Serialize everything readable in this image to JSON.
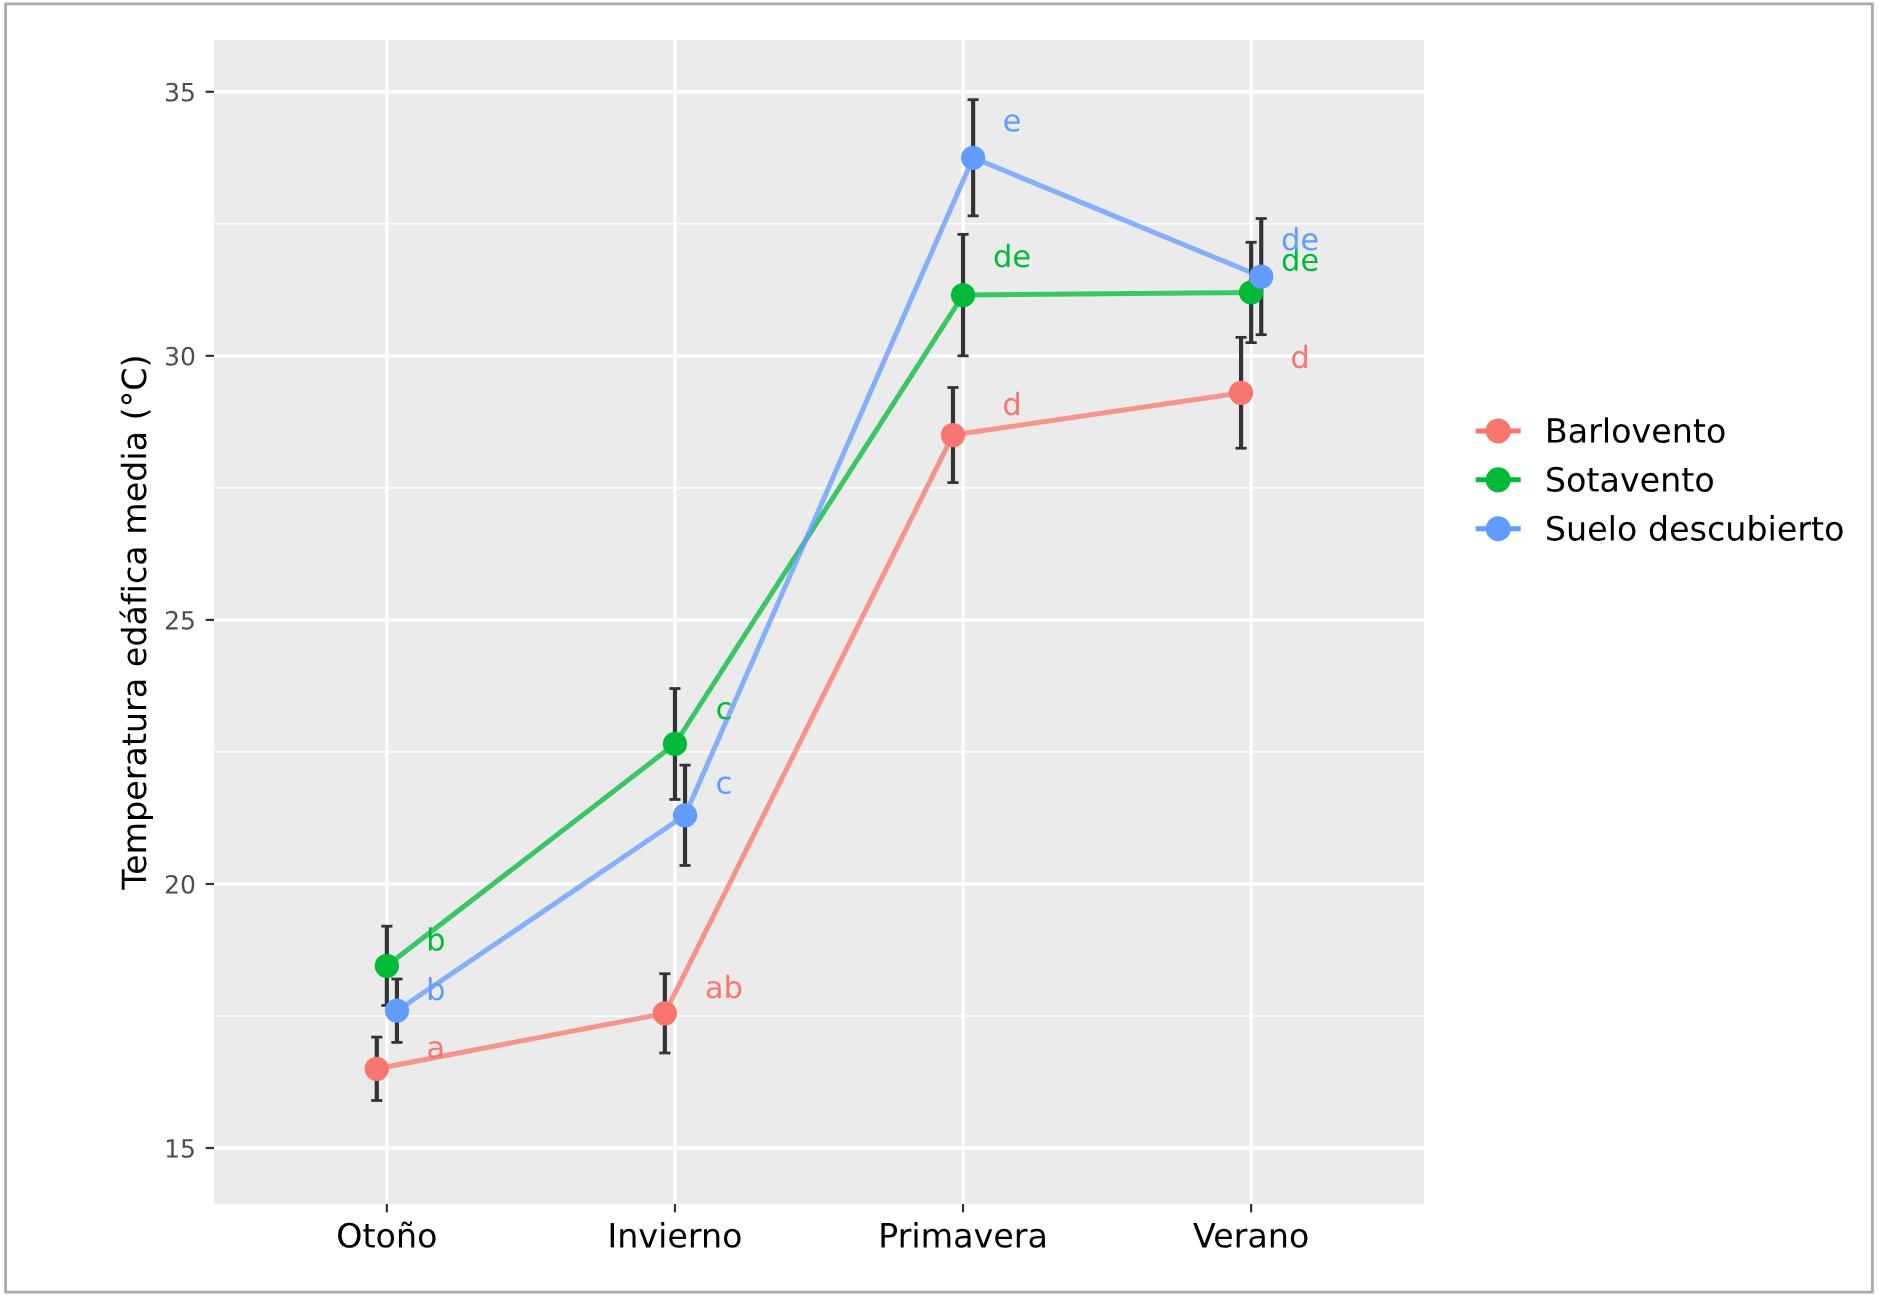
{
  "chart_data": {
    "type": "line",
    "ylabel": "Temperatura edáfica media (°C)",
    "categories": [
      "Otoño",
      "Invierno",
      "Primavera",
      "Verano"
    ],
    "ylim": [
      13.94,
      35.98
    ],
    "yticks": [
      15,
      20,
      25,
      30,
      35
    ],
    "grid": true,
    "legend": "right",
    "marker": "circle",
    "line_style": "solid",
    "series": [
      {
        "name": "Barlovento",
        "color": "#f8766d",
        "values": [
          16.5,
          17.55,
          28.5,
          29.3
        ],
        "errors": [
          0.6,
          0.75,
          0.9,
          1.05
        ],
        "value_labels": [
          "a",
          "ab",
          "d",
          "d"
        ]
      },
      {
        "name": "Sotavento",
        "color": "#00ba38",
        "values": [
          18.45,
          22.65,
          31.15,
          31.2
        ],
        "errors": [
          0.75,
          1.05,
          1.15,
          0.95
        ],
        "value_labels": [
          "b",
          "c",
          "de",
          "de"
        ]
      },
      {
        "name": "Suelo descubierto",
        "color": "#619cff",
        "values": [
          17.6,
          21.3,
          33.75,
          31.5
        ],
        "errors": [
          0.6,
          0.95,
          1.1,
          1.1
        ],
        "value_labels": [
          "b",
          "c",
          "e",
          "de"
        ]
      }
    ]
  }
}
